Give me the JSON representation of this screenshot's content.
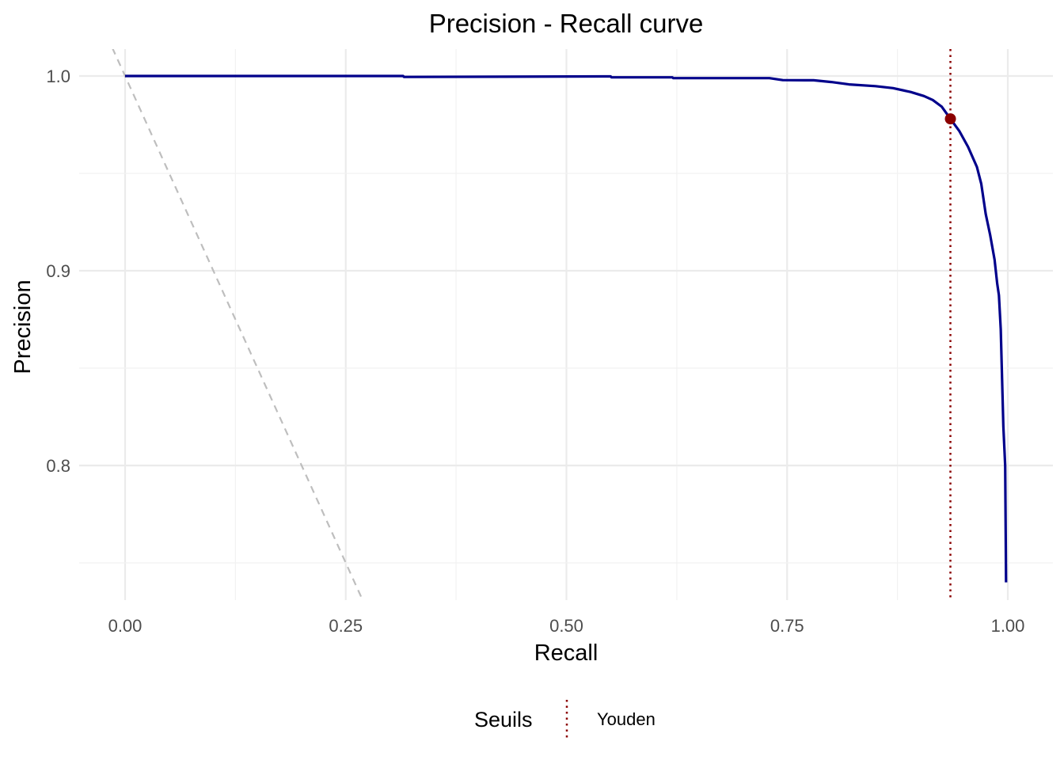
{
  "chart_data": {
    "type": "line",
    "title": "Precision - Recall curve",
    "xlabel": "Recall",
    "ylabel": "Precision",
    "xlim": [
      -0.05,
      1.025
    ],
    "ylim": [
      0.73,
      1.014
    ],
    "x_ticks": [
      0.0,
      0.25,
      0.5,
      0.75,
      1.0
    ],
    "x_tick_labels": [
      "0.00",
      "0.25",
      "0.50",
      "0.75",
      "1.00"
    ],
    "y_ticks": [
      0.8,
      0.9,
      1.0
    ],
    "y_tick_labels": [
      "0.8",
      "0.9",
      "1.0"
    ],
    "grid": true,
    "series": [
      {
        "role": "curve",
        "color": "#00008B",
        "points": [
          [
            0.0,
            1.0
          ],
          [
            0.315,
            1.0
          ],
          [
            0.316,
            0.9995
          ],
          [
            0.55,
            0.9998
          ],
          [
            0.551,
            0.9993
          ],
          [
            0.62,
            0.9993
          ],
          [
            0.621,
            0.9989
          ],
          [
            0.73,
            0.9989
          ],
          [
            0.745,
            0.9979
          ],
          [
            0.78,
            0.9978
          ],
          [
            0.8,
            0.9969
          ],
          [
            0.82,
            0.9957
          ],
          [
            0.85,
            0.9948
          ],
          [
            0.87,
            0.9938
          ],
          [
            0.89,
            0.9918
          ],
          [
            0.905,
            0.9897
          ],
          [
            0.915,
            0.9877
          ],
          [
            0.925,
            0.9843
          ],
          [
            0.935,
            0.978
          ],
          [
            0.945,
            0.9718
          ],
          [
            0.955,
            0.9636
          ],
          [
            0.965,
            0.9533
          ],
          [
            0.97,
            0.9446
          ],
          [
            0.975,
            0.9292
          ],
          [
            0.98,
            0.9184
          ],
          [
            0.985,
            0.9057
          ],
          [
            0.988,
            0.8935
          ],
          [
            0.99,
            0.8874
          ],
          [
            0.992,
            0.87
          ],
          [
            0.995,
            0.82
          ],
          [
            0.997,
            0.8
          ],
          [
            0.998,
            0.74
          ]
        ]
      },
      {
        "role": "chance-diagonal",
        "color": "#BEBEBE",
        "dash": "dashed",
        "points": [
          [
            -0.05,
            1.05
          ],
          [
            0.35,
            0.65
          ]
        ]
      }
    ],
    "thresholds": [
      {
        "name": "Youden",
        "x": 0.935,
        "y": 0.978,
        "color": "#8B0000",
        "line": "dotted"
      }
    ],
    "legend": {
      "title": "Seuils",
      "position": "bottom",
      "items": [
        {
          "label": "Youden",
          "color": "#8B0000",
          "line": "dotted"
        }
      ]
    }
  }
}
